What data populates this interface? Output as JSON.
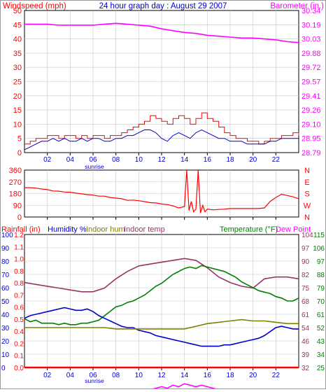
{
  "chart_data": [
    {
      "type": "line",
      "title": "24 hour graph day : August 29 2007",
      "left_axis_label": "Windspeed (mph)",
      "right_axis_label": "Barometer (in.)",
      "x_ticks": [
        "02",
        "04",
        "06",
        "08",
        "10",
        "12",
        "14",
        "16",
        "18",
        "20",
        "22"
      ],
      "x_annotation": "sunrise",
      "y_left": {
        "min": 0,
        "max": 50,
        "ticks": [
          "0",
          "5",
          "10",
          "15",
          "20",
          "25",
          "30",
          "35",
          "40",
          "45",
          "50"
        ]
      },
      "y_right": {
        "min": 28.79,
        "max": 30.34,
        "ticks": [
          "28.79",
          "28.95",
          "29.10",
          "29.26",
          "29.41",
          "29.57",
          "29.72",
          "29.88",
          "30.03",
          "30.19",
          "30.34"
        ]
      },
      "series": [
        {
          "name": "Barometer (in.)",
          "axis": "right",
          "color": "#ff00ff",
          "x": [
            0,
            1,
            2,
            3,
            4,
            5,
            6,
            7,
            8,
            9,
            10,
            11,
            12,
            13,
            14,
            15,
            16,
            17,
            18,
            19,
            20,
            21,
            22,
            23,
            24
          ],
          "y": [
            30.19,
            30.19,
            30.19,
            30.18,
            30.18,
            30.18,
            30.18,
            30.19,
            30.2,
            30.19,
            30.18,
            30.17,
            30.14,
            30.12,
            30.1,
            30.09,
            30.07,
            30.06,
            30.05,
            30.04,
            30.04,
            30.03,
            30.02,
            30.0,
            29.99
          ]
        },
        {
          "name": "Wind gust (mph)",
          "axis": "left",
          "color": "#ff0000",
          "x": [
            0,
            0.5,
            1,
            1.5,
            2,
            2.5,
            3,
            3.5,
            4,
            4.5,
            5,
            5.5,
            6,
            6.5,
            7,
            7.5,
            8,
            8.5,
            9,
            9.5,
            10,
            10.5,
            11,
            11.5,
            12,
            12.5,
            13,
            13.5,
            14,
            14.5,
            15,
            15.5,
            16,
            16.5,
            17,
            17.5,
            18,
            18.5,
            19,
            19.5,
            20,
            20.5,
            21,
            21.5,
            22,
            22.5,
            23,
            23.5,
            24
          ],
          "y": [
            3,
            4,
            5,
            5,
            6,
            6,
            5,
            6,
            6,
            5,
            6,
            5,
            6,
            6,
            5,
            6,
            6,
            7,
            8,
            9,
            10,
            11,
            13,
            12,
            11,
            10,
            12,
            13,
            12,
            10,
            12,
            14,
            12,
            11,
            9,
            7,
            6,
            5,
            5,
            4,
            4,
            3,
            4,
            5,
            5,
            6,
            6,
            7,
            6
          ]
        },
        {
          "name": "Wind speed (mph)",
          "axis": "left",
          "color": "#0000cc",
          "x": [
            0,
            0.5,
            1,
            1.5,
            2,
            2.5,
            3,
            3.5,
            4,
            4.5,
            5,
            5.5,
            6,
            6.5,
            7,
            7.5,
            8,
            8.5,
            9,
            9.5,
            10,
            10.5,
            11,
            11.5,
            12,
            12.5,
            13,
            13.5,
            14,
            14.5,
            15,
            15.5,
            16,
            16.5,
            17,
            17.5,
            18,
            18.5,
            19,
            19.5,
            20,
            20.5,
            21,
            21.5,
            22,
            22.5,
            23,
            23.5,
            24
          ],
          "y": [
            1,
            2,
            3,
            4,
            4,
            5,
            4,
            5,
            4,
            4,
            5,
            4,
            5,
            5,
            4,
            4,
            5,
            5,
            6,
            6,
            7,
            8,
            8,
            7,
            5,
            4,
            6,
            7,
            6,
            5,
            7,
            8,
            7,
            6,
            5,
            5,
            4,
            4,
            4,
            3,
            3,
            3,
            3,
            4,
            4,
            5,
            5,
            5,
            5
          ]
        }
      ]
    },
    {
      "type": "line",
      "left_axis_label": "",
      "right_axis_label": "",
      "x_ticks": [
        "02",
        "04",
        "06",
        "08",
        "10",
        "12",
        "14",
        "16",
        "18",
        "20",
        "22"
      ],
      "y_left": {
        "min": 0,
        "max": 360,
        "ticks": [
          "0",
          "90",
          "180",
          "270",
          "360"
        ]
      },
      "y_right_labels": [
        "N",
        "W",
        "S",
        "E",
        "N"
      ],
      "series": [
        {
          "name": "Wind direction",
          "color": "#ff0000",
          "x": [
            0,
            0.5,
            1,
            1.5,
            2,
            2.5,
            3,
            3.5,
            4,
            4.5,
            5,
            5.5,
            6,
            6.5,
            7,
            7.5,
            8,
            8.5,
            9,
            9.5,
            10,
            10.5,
            11,
            11.5,
            12,
            12.5,
            13,
            13.5,
            14,
            14.2,
            14.4,
            14.6,
            14.8,
            15,
            15.2,
            15.4,
            15.6,
            15.8,
            16,
            16.5,
            17,
            17.5,
            18,
            18.5,
            19,
            19.5,
            20,
            20.5,
            21,
            21.5,
            22,
            22.5,
            23,
            23.5,
            24
          ],
          "y": [
            225,
            225,
            222,
            215,
            210,
            200,
            198,
            192,
            190,
            183,
            178,
            172,
            168,
            160,
            160,
            150,
            145,
            140,
            128,
            130,
            125,
            118,
            110,
            108,
            100,
            95,
            85,
            70,
            80,
            360,
            50,
            120,
            40,
            60,
            360,
            30,
            90,
            40,
            60,
            55,
            58,
            60,
            65,
            65,
            65,
            65,
            65,
            65,
            70,
            120,
            150,
            175,
            165,
            155,
            140
          ]
        }
      ]
    },
    {
      "type": "line",
      "left_axis_labels": [
        "Rainfall (in)",
        "Humidity %",
        "Indoor hum",
        "Indoor temp"
      ],
      "right_axis_labels": [
        "Temperature (°F)",
        "Dew Point"
      ],
      "x_ticks": [
        "02",
        "04",
        "06",
        "08",
        "10",
        "12",
        "14",
        "16",
        "18",
        "20",
        "22"
      ],
      "x_annotation": "sunrise",
      "y_humidity": {
        "min": 0,
        "max": 100,
        "ticks": [
          "0",
          "10",
          "20",
          "30",
          "40",
          "50",
          "60",
          "70",
          "80",
          "90",
          "100"
        ]
      },
      "y_rain": {
        "min": 0,
        "max": 1.2,
        "ticks": [
          "0.0",
          "0.1",
          "0.2",
          "0.4",
          "0.5",
          "0.6",
          "0.7",
          "0.8",
          "0.8",
          "1.0",
          "1.1",
          "1.2"
        ]
      },
      "y_right_outer": {
        "min": 25,
        "max": 115,
        "ticks": [
          "25",
          "34",
          "43",
          "52",
          "61",
          "70",
          "79",
          "88",
          "97",
          "106",
          "115"
        ]
      },
      "y_right_inner": {
        "min": 32,
        "max": 104,
        "ticks": [
          "32",
          "39",
          "46",
          "54",
          "61",
          "68",
          "75",
          "82",
          "90",
          "97",
          "104"
        ]
      },
      "series": [
        {
          "name": "Indoor temp",
          "color": "#993366",
          "x": [
            0,
            1,
            2,
            3,
            4,
            5,
            6,
            7,
            8,
            9,
            10,
            11,
            12,
            13,
            14,
            15,
            16,
            17,
            18,
            19,
            20,
            21,
            22,
            23,
            24
          ],
          "y": [
            78,
            77,
            76,
            75,
            74,
            73,
            73,
            75,
            80,
            84,
            87,
            88,
            89,
            90,
            91,
            90,
            86,
            81,
            78,
            76,
            75,
            80,
            81,
            81,
            80
          ]
        },
        {
          "name": "Temperature (°F)",
          "color": "#008000",
          "x": [
            0,
            0.5,
            1,
            1.5,
            2,
            2.5,
            3,
            3.5,
            4,
            4.5,
            5,
            5.5,
            6,
            6.5,
            7,
            7.5,
            8,
            8.5,
            9,
            9.5,
            10,
            10.5,
            11,
            11.5,
            12,
            12.5,
            13,
            13.5,
            14,
            14.5,
            15,
            15.5,
            16,
            16.5,
            17,
            17.5,
            18,
            18.5,
            19,
            19.5,
            20,
            20.5,
            21,
            21.5,
            22,
            22.5,
            23,
            23.5,
            24
          ],
          "y": [
            58,
            56,
            57,
            55,
            55,
            55,
            54,
            55,
            54,
            54,
            55,
            55,
            56,
            57,
            60,
            63,
            66,
            67,
            69,
            70,
            72,
            74,
            77,
            80,
            82,
            85,
            88,
            90,
            92,
            93,
            92,
            94,
            93,
            92,
            91,
            90,
            88,
            86,
            83,
            81,
            79,
            77,
            76,
            75,
            73,
            72,
            70,
            70,
            72
          ]
        },
        {
          "name": "Humidity %",
          "color": "#0000cc",
          "x": [
            0,
            0.5,
            1,
            1.5,
            2,
            2.5,
            3,
            3.5,
            4,
            4.5,
            5,
            5.5,
            6,
            6.5,
            7,
            7.5,
            8,
            8.5,
            9,
            9.5,
            10,
            10.5,
            11,
            11.5,
            12,
            12.5,
            13,
            13.5,
            14,
            14.5,
            15,
            15.5,
            16,
            16.5,
            17,
            17.5,
            18,
            18.5,
            19,
            19.5,
            20,
            20.5,
            21,
            21.5,
            22,
            22.5,
            23,
            23.5,
            24
          ],
          "y": [
            37,
            39,
            40,
            41,
            42,
            43,
            44,
            45,
            44,
            43,
            43,
            44,
            42,
            39,
            37,
            35,
            33,
            31,
            30,
            30,
            28,
            27,
            26,
            24,
            23,
            22,
            21,
            20,
            19,
            18,
            17,
            16,
            16,
            16,
            16,
            17,
            17,
            18,
            19,
            20,
            21,
            22,
            24,
            27,
            30,
            31,
            30,
            29,
            29
          ]
        },
        {
          "name": "Indoor hum",
          "color": "#808000",
          "x": [
            0,
            1,
            2,
            3,
            4,
            5,
            6,
            7,
            8,
            9,
            10,
            11,
            12,
            13,
            14,
            15,
            16,
            17,
            18,
            19,
            20,
            21,
            22,
            23,
            24
          ],
          "y": [
            30,
            30,
            30,
            30,
            30,
            30,
            30,
            30,
            29,
            29,
            29,
            29,
            29,
            29,
            29,
            31,
            33,
            34,
            35,
            36,
            35,
            35,
            34,
            33,
            33
          ]
        },
        {
          "name": "Dew Point",
          "color": "#ff00ff",
          "x": [
            0,
            0.5,
            1,
            1.5,
            2,
            2.5,
            3,
            3.5,
            4,
            4.5,
            5,
            5.5,
            6,
            6.5,
            7,
            7.5,
            8,
            8.5,
            9,
            9.5,
            10,
            10.5,
            11,
            11.5,
            12,
            12.5,
            13,
            13.5,
            14,
            14.5,
            15,
            15.5,
            16,
            16.5,
            17,
            17.5,
            18,
            18.5,
            19,
            19.5,
            20,
            20.5,
            21,
            21.5,
            22,
            22.5,
            23,
            23.5,
            24
          ],
          "y": [
            3.5,
            4,
            3.5,
            4,
            3.5,
            4,
            4,
            3.5,
            4,
            4,
            4,
            4,
            4.5,
            6,
            7,
            7,
            7,
            8,
            8,
            9,
            9,
            10,
            10,
            11,
            12,
            11,
            13,
            12,
            14,
            13,
            12,
            13,
            12,
            11,
            10,
            10,
            9,
            9,
            8,
            8,
            7,
            7,
            6,
            6,
            6,
            6,
            6,
            7,
            7
          ]
        },
        {
          "name": "Rainfall (in)",
          "color": "#ff0000",
          "x": [
            0,
            24
          ],
          "y": [
            0.0,
            0.0
          ]
        }
      ]
    }
  ],
  "colors": {
    "windspeed_label": "#ff0000",
    "barometer_label": "#ff00ff",
    "title": "#0000cc",
    "rainfall_label": "#ff0000",
    "humidity_label": "#0000cc",
    "indoor_hum_label": "#808000",
    "indoor_temp_label": "#993366",
    "temperature_label": "#008000",
    "dewpoint_label": "#ff00ff",
    "grid": "#c8c8c8"
  }
}
